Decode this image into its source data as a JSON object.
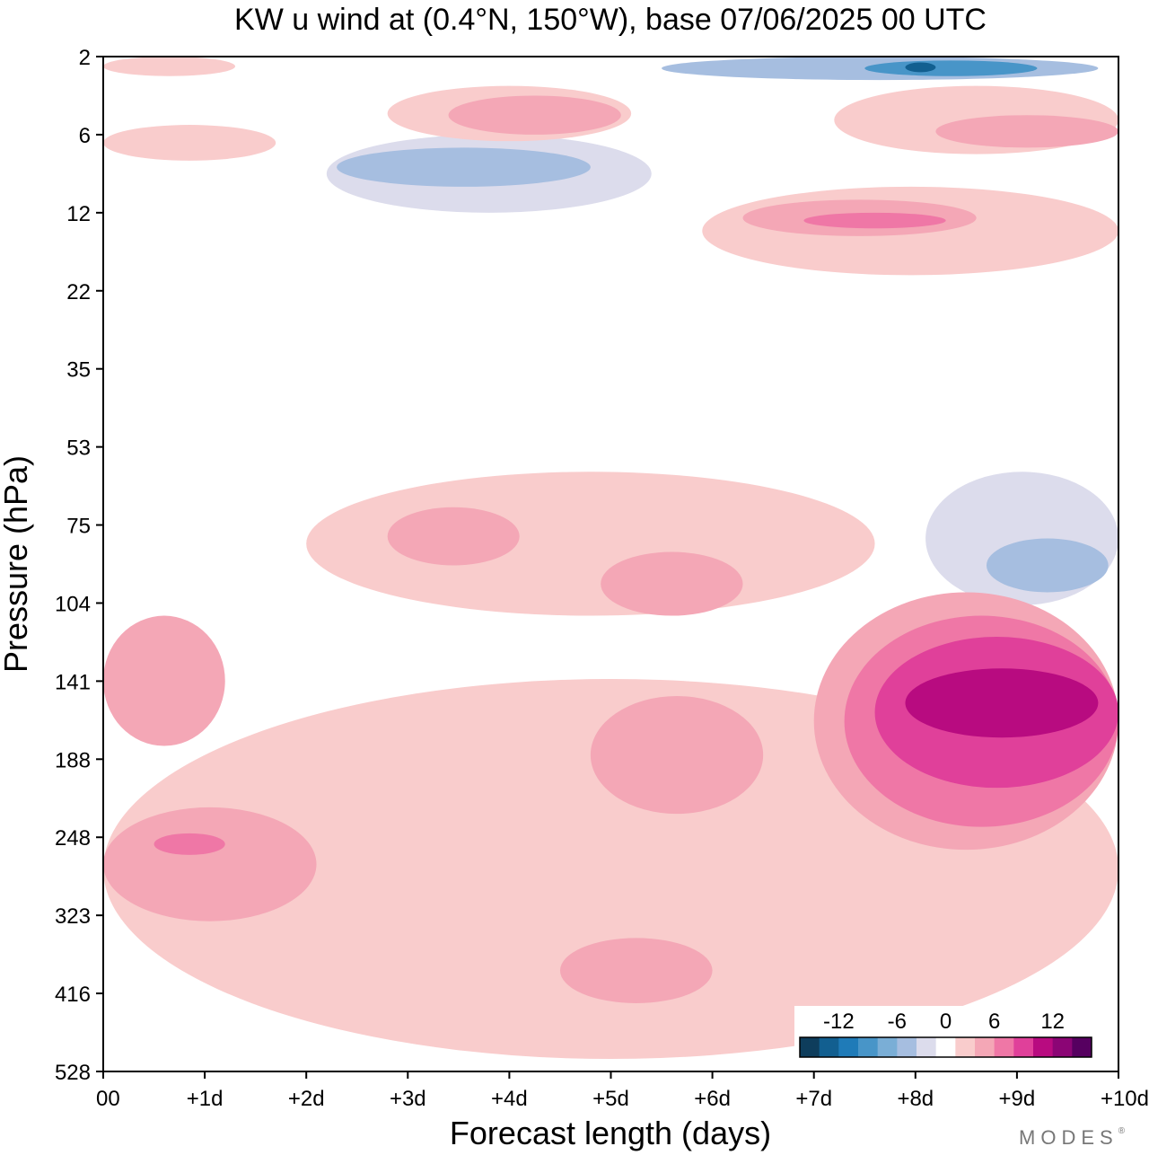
{
  "chart_data": {
    "type": "heatmap",
    "title": "KW u wind at (0.4°N, 150°W),  base 07/06/2025  00 UTC",
    "xlabel": "Forecast length (days)",
    "ylabel": "Pressure (hPa)",
    "x_ticks": [
      "00",
      "+1d",
      "+2d",
      "+3d",
      "+4d",
      "+5d",
      "+6d",
      "+7d",
      "+8d",
      "+9d",
      "+10d"
    ],
    "y_ticks": [
      "2",
      "6",
      "12",
      "22",
      "35",
      "53",
      "75",
      "104",
      "141",
      "188",
      "248",
      "323",
      "416",
      "528"
    ],
    "colorbar": {
      "tick_labels": [
        "-12",
        "-6",
        "0",
        "6",
        "12"
      ],
      "levels": [
        -16,
        -14,
        -12,
        -10,
        -8,
        -6,
        -4,
        -2,
        2,
        4,
        6,
        8,
        10,
        12,
        14,
        16
      ],
      "colors": [
        "#0e3d5c",
        "#125f90",
        "#1f7bb8",
        "#4895c8",
        "#7aaed6",
        "#a6bee0",
        "#dcdcec",
        "#ffffff",
        "#f9cccc",
        "#f4a7b6",
        "#ef77a6",
        "#e0409a",
        "#b80b80",
        "#8b0575",
        "#560060"
      ]
    },
    "regions": [
      {
        "value": -2,
        "day": [
          0.5,
          2.0
        ],
        "pressure": [
          416,
          528
        ]
      },
      {
        "value": -2,
        "day": [
          2.3,
          5.4
        ],
        "pressure": [
          141,
          280
        ]
      },
      {
        "value": -5,
        "day": [
          2.8,
          4.7
        ],
        "pressure": [
          170,
          248
        ]
      },
      {
        "value": -2,
        "day": [
          0.8,
          2.1
        ],
        "pressure": [
          85,
          110
        ]
      },
      {
        "value": -2,
        "day": [
          6.1,
          8.2
        ],
        "pressure": [
          30,
          45
        ]
      },
      {
        "value": -3,
        "day": [
          8.1,
          10.0
        ],
        "pressure": [
          60,
          105
        ]
      },
      {
        "value": -5,
        "day": [
          8.7,
          9.9
        ],
        "pressure": [
          80,
          100
        ]
      },
      {
        "value": -3,
        "day": [
          2.2,
          5.4
        ],
        "pressure": [
          6,
          12
        ]
      },
      {
        "value": -5,
        "day": [
          2.3,
          4.8
        ],
        "pressure": [
          7,
          10
        ]
      },
      {
        "value": -5,
        "day": [
          5.5,
          9.8
        ],
        "pressure": [
          2,
          3.2
        ]
      },
      {
        "value": -9,
        "day": [
          7.5,
          9.2
        ],
        "pressure": [
          2.2,
          3.0
        ]
      },
      {
        "value": -13,
        "day": [
          7.9,
          8.2
        ],
        "pressure": [
          2.3,
          2.8
        ]
      },
      {
        "value": 3,
        "day": [
          0.0,
          1.3
        ],
        "pressure": [
          2,
          3
        ]
      },
      {
        "value": 3,
        "day": [
          0.0,
          1.7
        ],
        "pressure": [
          5.5,
          8
        ]
      },
      {
        "value": 3,
        "day": [
          2.8,
          5.2
        ],
        "pressure": [
          3.5,
          6.5
        ]
      },
      {
        "value": 5,
        "day": [
          3.4,
          5.1
        ],
        "pressure": [
          4,
          6
        ]
      },
      {
        "value": 3,
        "day": [
          5.9,
          10.0
        ],
        "pressure": [
          10,
          20
        ]
      },
      {
        "value": 5,
        "day": [
          6.3,
          8.6
        ],
        "pressure": [
          11,
          15
        ]
      },
      {
        "value": 7,
        "day": [
          6.9,
          8.3
        ],
        "pressure": [
          12,
          14
        ]
      },
      {
        "value": 3,
        "day": [
          7.2,
          10.0
        ],
        "pressure": [
          3.5,
          7.5
        ]
      },
      {
        "value": 5,
        "day": [
          8.2,
          10.0
        ],
        "pressure": [
          5,
          7
        ]
      },
      {
        "value": 3,
        "day": [
          2.0,
          7.6
        ],
        "pressure": [
          60,
          110
        ]
      },
      {
        "value": 5,
        "day": [
          2.8,
          4.1
        ],
        "pressure": [
          70,
          90
        ]
      },
      {
        "value": 5,
        "day": [
          4.9,
          6.3
        ],
        "pressure": [
          85,
          110
        ]
      },
      {
        "value": 3,
        "day": [
          0.0,
          10.0
        ],
        "pressure": [
          140,
          510
        ]
      },
      {
        "value": 5,
        "day": [
          0.0,
          2.1
        ],
        "pressure": [
          225,
          330
        ]
      },
      {
        "value": 7,
        "day": [
          0.5,
          1.2
        ],
        "pressure": [
          245,
          265
        ]
      },
      {
        "value": 5,
        "day": [
          0.0,
          1.2
        ],
        "pressure": [
          110,
          180
        ]
      },
      {
        "value": 5,
        "day": [
          4.8,
          6.5
        ],
        "pressure": [
          150,
          230
        ]
      },
      {
        "value": 5,
        "day": [
          4.5,
          6.0
        ],
        "pressure": [
          350,
          430
        ]
      },
      {
        "value": 5,
        "day": [
          7.0,
          10.0
        ],
        "pressure": [
          100,
          260
        ]
      },
      {
        "value": 7,
        "day": [
          7.3,
          10.0
        ],
        "pressure": [
          110,
          240
        ]
      },
      {
        "value": 9,
        "day": [
          7.6,
          10.0
        ],
        "pressure": [
          120,
          210
        ]
      },
      {
        "value": 11,
        "day": [
          7.9,
          9.8
        ],
        "pressure": [
          135,
          175
        ]
      }
    ]
  },
  "brand": "MODES",
  "brand_mark": "®"
}
